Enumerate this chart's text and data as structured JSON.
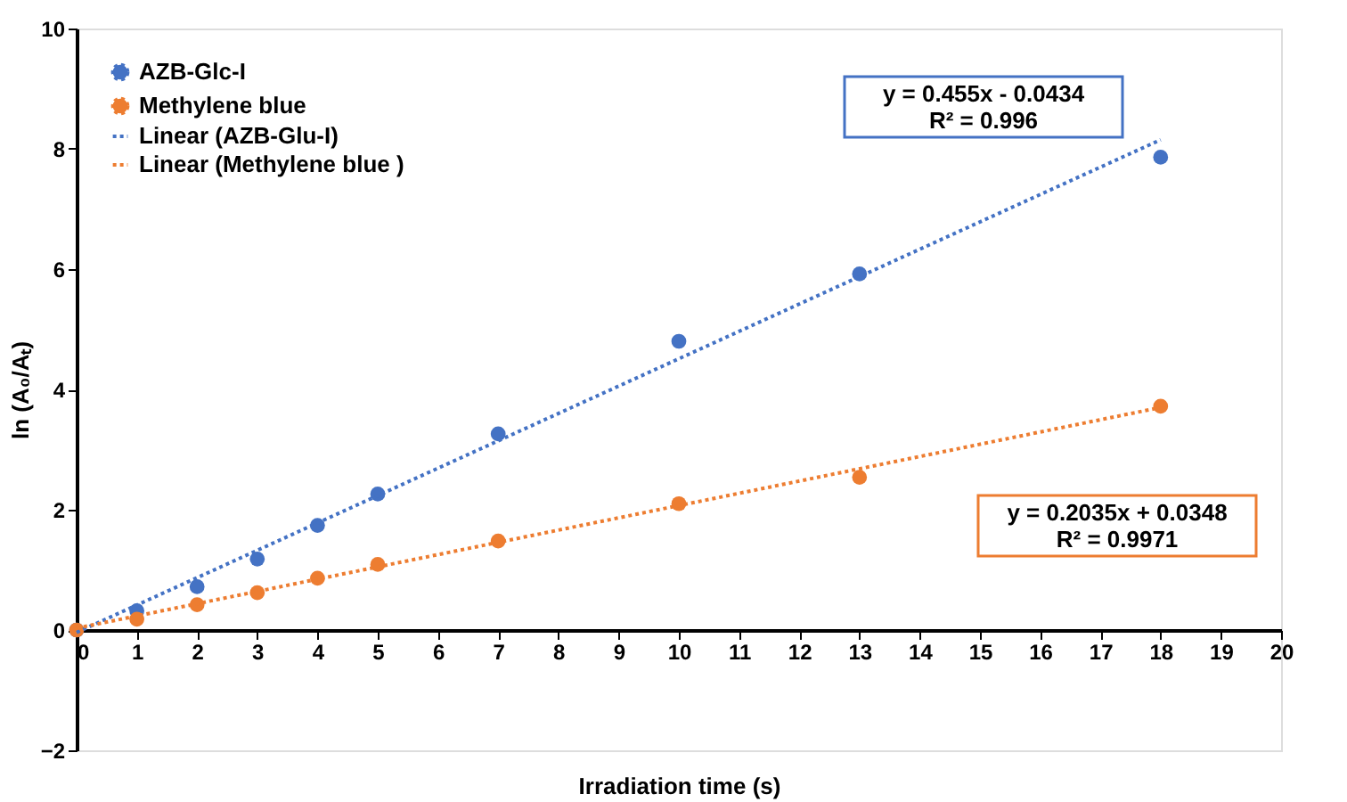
{
  "chart_data": {
    "type": "scatter",
    "xlabel": "Irradiation time (s)",
    "ylabel": "ln (A₀/Aₜ)",
    "xlim": [
      0,
      20
    ],
    "xticks": [
      0,
      1,
      2,
      3,
      4,
      5,
      6,
      7,
      8,
      9,
      10,
      11,
      12,
      13,
      14,
      15,
      16,
      17,
      18,
      19,
      20
    ],
    "ylim": [
      -2,
      10
    ],
    "yticks": [
      -2,
      0,
      2,
      4,
      6,
      8,
      10
    ],
    "grid": false,
    "legend": "top left",
    "series": [
      {
        "name": "AZB-Glc-I",
        "marker": "circle",
        "color": "#4472c4",
        "x": [
          0,
          1,
          2,
          3,
          4,
          5,
          7,
          10,
          13,
          18
        ],
        "values": [
          0,
          0.32,
          0.72,
          1.18,
          1.74,
          2.26,
          3.26,
          4.8,
          5.92,
          7.86
        ]
      },
      {
        "name": "Methylene blue",
        "marker": "circle",
        "color": "#ed7d31",
        "x": [
          0,
          1,
          2,
          3,
          4,
          5,
          7,
          10,
          13,
          18
        ],
        "values": [
          0,
          0.18,
          0.42,
          0.62,
          0.86,
          1.09,
          1.48,
          2.1,
          2.54,
          3.72
        ]
      },
      {
        "name": "Linear (AZB-Glu-I)",
        "type": "line",
        "line_style": "dotted",
        "color": "#4472c4",
        "x": [
          0,
          18
        ],
        "values": [
          -0.04,
          8.15
        ]
      },
      {
        "name": "Linear (Methylene blue )",
        "type": "line",
        "line_style": "dotted",
        "color": "#ed7d31",
        "x": [
          0,
          18
        ],
        "values": [
          0.03,
          3.7
        ]
      }
    ],
    "annotations": [
      "y = 0.455x - 0.0434\nR² = 0.996",
      "y = 0.2035x + 0.0348\nR² = 0.9971"
    ]
  }
}
